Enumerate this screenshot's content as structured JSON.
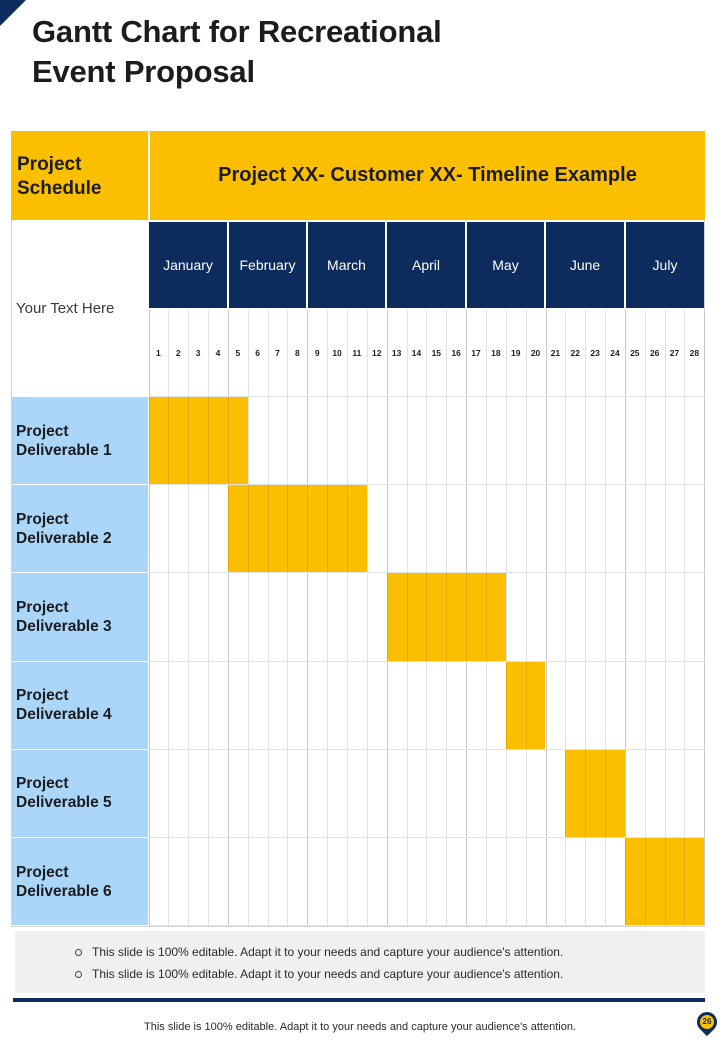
{
  "title_line1": "Gantt Chart for Recreational",
  "title_line2": "Event Proposal",
  "schedule_label_line1": "Project",
  "schedule_label_line2": "Schedule",
  "header_title": "Project XX- Customer XX- Timeline Example",
  "your_text": "Your Text Here",
  "months": [
    "January",
    "February",
    "March",
    "April",
    "May",
    "June",
    "July"
  ],
  "weeks": [
    "1",
    "2",
    "3",
    "4",
    "5",
    "6",
    "7",
    "8",
    "9",
    "10",
    "11",
    "12",
    "13",
    "14",
    "15",
    "16",
    "17",
    "18",
    "19",
    "20",
    "21",
    "22",
    "23",
    "24",
    "25",
    "26",
    "27",
    "28"
  ],
  "deliverables": [
    {
      "line1": "Project",
      "line2": "Deliverable 1",
      "start_week": 1,
      "end_week": 5
    },
    {
      "line1": "Project",
      "line2": "Deliverable 2",
      "start_week": 5,
      "end_week": 11
    },
    {
      "line1": "Project",
      "line2": "Deliverable 3",
      "start_week": 13,
      "end_week": 18
    },
    {
      "line1": "Project",
      "line2": "Deliverable 4",
      "start_week": 19,
      "end_week": 20
    },
    {
      "line1": "Project",
      "line2": "Deliverable 5",
      "start_week": 22,
      "end_week": 24
    },
    {
      "line1": "Project",
      "line2": "Deliverable 6",
      "start_week": 25,
      "end_week": 28
    }
  ],
  "notes": [
    "This slide is 100% editable. Adapt it to your needs and capture your audience's attention.",
    "This slide is 100% editable. Adapt it to your needs and capture your audience's attention."
  ],
  "footer_text": "This slide is 100% editable. Adapt it to your needs and capture your audience's attention.",
  "page_number": "26",
  "colors": {
    "accent_yellow": "#fcbf00",
    "navy": "#0d2b5c",
    "label_blue": "#aad6fa"
  }
}
